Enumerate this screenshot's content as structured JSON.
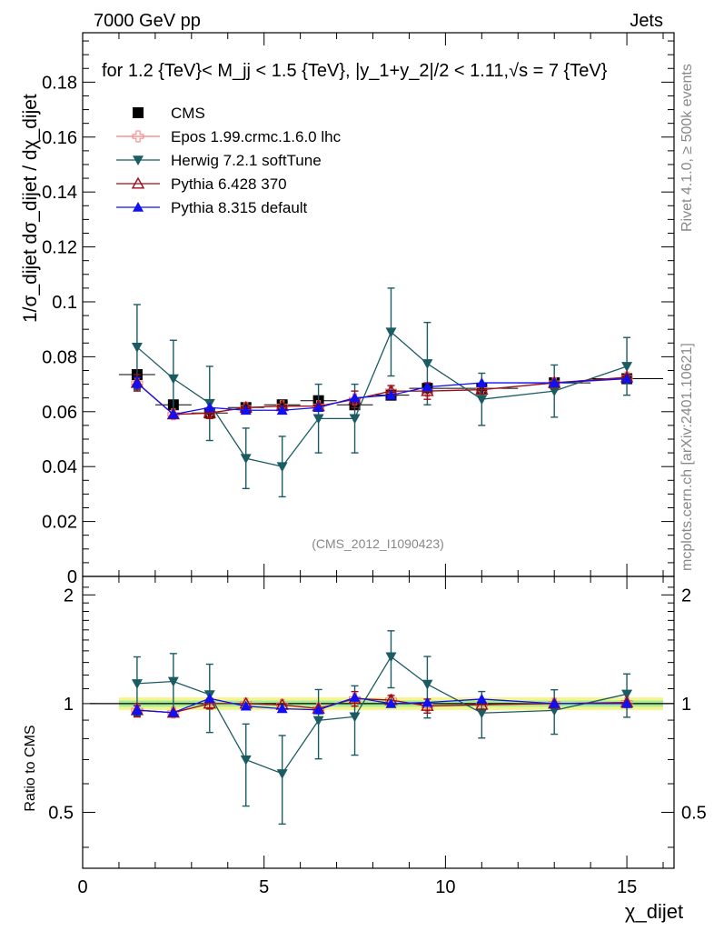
{
  "header": {
    "left": "7000 GeV pp",
    "right": "Jets"
  },
  "side_labels": {
    "rivet": "Rivet 4.1.0, ≥ 500k events",
    "mcplots": "mcplots.cern.ch [arXiv:2401.10621]"
  },
  "chart_data": {
    "type": "line",
    "title": "for 1.2 {TeV}< M_jj < 1.5 {TeV}, |y_1+y_2|/2 < 1.11,√s = 7 {TeV}",
    "ylabel": "1/σ_dijet dσ_dijet / dχ_dijet",
    "xlabel": "χ_dijet",
    "watermark": "(CMS_2012_I1090423)",
    "xlim": [
      0,
      16.3
    ],
    "ylim": [
      0,
      0.198
    ],
    "x_ticks": [
      "0",
      "5",
      "10",
      "15"
    ],
    "y_ticks": [
      "0",
      "0.02",
      "0.04",
      "0.06",
      "0.08",
      "0.1",
      "0.12",
      "0.14",
      "0.16",
      "0.18"
    ],
    "x": [
      1.5,
      2.5,
      3.5,
      4.5,
      5.5,
      6.5,
      7.5,
      8.5,
      9.5,
      11,
      13,
      15
    ],
    "data_series": {
      "name": "CMS",
      "values": [
        0.0735,
        0.0625,
        0.0595,
        0.0615,
        0.0625,
        0.064,
        0.0625,
        0.066,
        0.0685,
        0.0685,
        0.0705,
        0.072
      ],
      "xerr": [
        0.5,
        0.5,
        0.5,
        0.5,
        0.5,
        0.5,
        0.5,
        0.5,
        0.5,
        1.0,
        1.0,
        1.0
      ]
    },
    "series": [
      {
        "name": "Epos 1.99.crmc.1.6.0 lhc",
        "color": "#f08080",
        "marker": "open-cross",
        "values": [
          0.0705,
          0.059,
          0.0595,
          0.0615,
          0.062,
          0.062,
          0.0645,
          0.0675,
          0.0675,
          0.068,
          0.0705,
          0.0725
        ]
      },
      {
        "name": "Herwig 7.2.1 softTune",
        "color": "#1b5c63",
        "marker": "filled-down-triangle",
        "values": [
          0.0835,
          0.072,
          0.063,
          0.043,
          0.04,
          0.0575,
          0.0575,
          0.089,
          0.0775,
          0.0645,
          0.0675,
          0.0765
        ],
        "errors": [
          0.0155,
          0.014,
          0.0135,
          0.011,
          0.011,
          0.0125,
          0.0125,
          0.016,
          0.015,
          0.0095,
          0.0095,
          0.0105
        ]
      },
      {
        "name": "Pythia 6.428 370",
        "color": "#9b0e19",
        "marker": "open-triangle",
        "values": [
          0.0705,
          0.059,
          0.0595,
          0.0615,
          0.062,
          0.062,
          0.0645,
          0.0675,
          0.0675,
          0.068,
          0.0705,
          0.0725
        ],
        "errors": [
          0.003,
          0.0,
          0.002,
          0.0,
          0.0,
          0.0,
          0.003,
          0.002,
          0.003,
          0.0,
          0.0,
          0.0
        ]
      },
      {
        "name": "Pythia 8.315 default",
        "color": "#1010f0",
        "marker": "filled-triangle",
        "values": [
          0.0705,
          0.059,
          0.0615,
          0.0605,
          0.0605,
          0.0615,
          0.065,
          0.066,
          0.069,
          0.0705,
          0.0705,
          0.072
        ],
        "errors": [
          0.002,
          0.0,
          0.0,
          0.0,
          0.0,
          0.0,
          0.0,
          0.0,
          0.0,
          0.0,
          0.0,
          0.0
        ]
      }
    ],
    "ratio": {
      "ylabel": "Ratio to CMS",
      "ylim": [
        0.35,
        2.25
      ],
      "y_ticks": [
        "0.5",
        "1",
        "2"
      ],
      "band_inner": 0.02,
      "band_outer": 0.04
    }
  }
}
